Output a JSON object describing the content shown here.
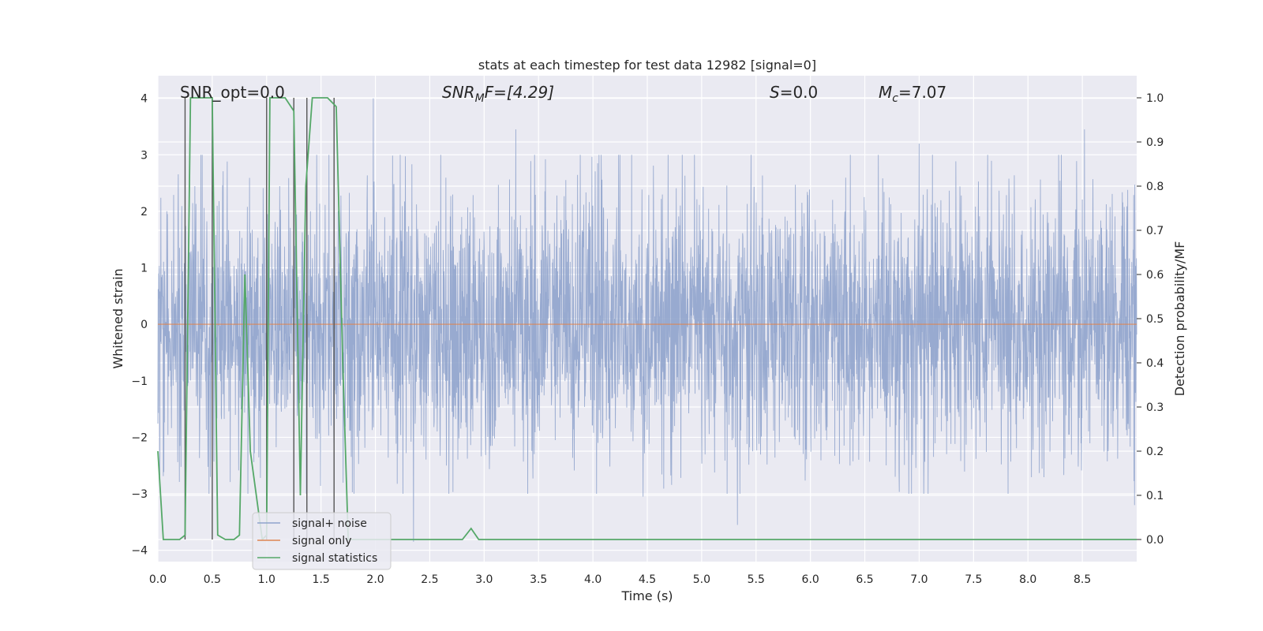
{
  "chart_data": {
    "type": "line",
    "title": "stats at each timestep for test data 12982 [signal=0]",
    "xlabel": "Time (s)",
    "ylabel": "Whitened strain",
    "y2label": "Detection probability/MF",
    "xlim": [
      0.0,
      9.0
    ],
    "ylim": [
      -4.2,
      4.4
    ],
    "y2lim": [
      -0.05,
      1.05
    ],
    "xticks": [
      0.0,
      0.5,
      1.0,
      1.5,
      2.0,
      2.5,
      3.0,
      3.5,
      4.0,
      4.5,
      5.0,
      5.5,
      6.0,
      6.5,
      7.0,
      7.5,
      8.0,
      8.5
    ],
    "xtick_labels": [
      "0.0",
      "0.5",
      "1.0",
      "1.5",
      "2.0",
      "2.5",
      "3.0",
      "3.5",
      "4.0",
      "4.5",
      "5.0",
      "5.5",
      "6.0",
      "6.5",
      "7.0",
      "7.5",
      "8.0",
      "8.5"
    ],
    "yticks": [
      4,
      3,
      2,
      1,
      0,
      -1,
      -2,
      -3,
      -4
    ],
    "ytick_labels": [
      "4",
      "3",
      "2",
      "1",
      "0",
      "−1",
      "−2",
      "−3",
      "−4"
    ],
    "y2ticks": [
      1.0,
      0.9,
      0.8,
      0.7,
      0.6,
      0.5,
      0.4,
      0.3,
      0.2,
      0.1,
      0.0
    ],
    "y2tick_labels": [
      "1.0",
      "0.9",
      "0.8",
      "0.7",
      "0.6",
      "0.5",
      "0.4",
      "0.3",
      "0.2",
      "0.1",
      "0.0"
    ],
    "grid": true,
    "annotations": {
      "snr_opt": "SNR_opt=0.0",
      "snr_mf_sym": "SNR",
      "snr_mf_sub": "M",
      "snr_mf_rest": "F=[4.29]",
      "s_sym": "S",
      "s_rest": "=0.0",
      "mc_sym": "M",
      "mc_sub": "c",
      "mc_rest": "=7.07"
    },
    "legend": {
      "position": "lower-left",
      "entries": [
        "signal+ noise",
        "signal only",
        "signal statistics"
      ]
    },
    "colors": {
      "noise": "#8fa3cc",
      "signal": "#dd8452",
      "stats": "#55a868",
      "background": "#eaeaf2",
      "grid": "#ffffff",
      "vlines": "#555555"
    },
    "series": [
      {
        "name": "signal+ noise",
        "note": "whitened strain noise, amplitude mostly within ±1.6 with excursions to about ±3.5",
        "x_range": [
          0.0,
          9.0
        ],
        "typical_amplitude": 1.6,
        "peaks": [
          {
            "x": 1.98,
            "y": 4.0
          },
          {
            "x": 8.52,
            "y": 3.45
          },
          {
            "x": 3.29,
            "y": 3.45
          },
          {
            "x": 2.35,
            "y": -3.85
          },
          {
            "x": 5.33,
            "y": -3.55
          },
          {
            "x": 4.46,
            "y": 3.35
          },
          {
            "x": 7.0,
            "y": 3.2
          },
          {
            "x": 8.98,
            "y": -3.2
          },
          {
            "x": 4.46,
            "y": -3.05
          }
        ]
      },
      {
        "name": "signal only",
        "x": [
          0.0,
          9.0
        ],
        "y": [
          0.0,
          0.0
        ]
      },
      {
        "name": "signal statistics",
        "axis": "right",
        "x": [
          0.0,
          0.05,
          0.2,
          0.25,
          0.3,
          0.5,
          0.55,
          0.62,
          0.7,
          0.75,
          0.8,
          0.85,
          0.96,
          1.0,
          1.03,
          1.07,
          1.17,
          1.25,
          1.31,
          1.36,
          1.42,
          1.56,
          1.64,
          1.7,
          1.75,
          1.82,
          2.8,
          2.88,
          2.95,
          9.0
        ],
        "y": [
          0.2,
          0.0,
          0.0,
          0.01,
          1.0,
          1.0,
          0.01,
          0.0,
          0.0,
          0.01,
          0.6,
          0.2,
          0.0,
          0.01,
          1.0,
          1.0,
          1.0,
          0.97,
          0.1,
          0.8,
          1.0,
          1.0,
          0.98,
          0.4,
          0.0,
          0.0,
          0.0,
          0.025,
          0.0,
          0.0
        ]
      }
    ],
    "vertical_lines": [
      0.25,
      0.5,
      1.0,
      1.25,
      1.37,
      1.62
    ]
  }
}
